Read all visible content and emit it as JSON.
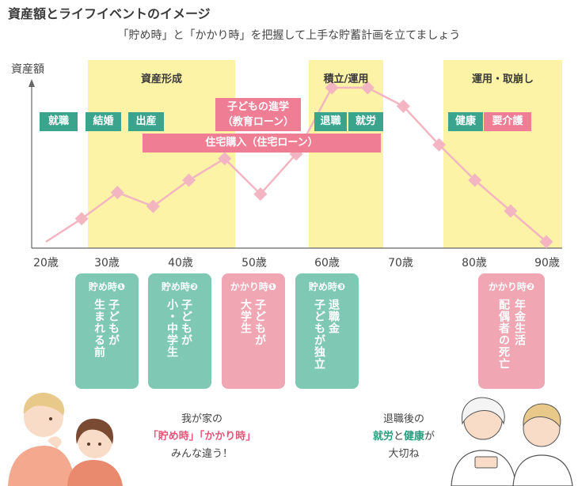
{
  "title": "資産額とライフイベントのイメージ",
  "subtitle": "「貯め時」と「かかり時」を把握して上手な貯蓄計画を立てましょう",
  "y_axis_label": "資産額",
  "stages": [
    {
      "label": "資産形成"
    },
    {
      "label": "積立/運用"
    },
    {
      "label": "運用・取崩し"
    }
  ],
  "ages": [
    "20歳",
    "30歳",
    "40歳",
    "50歳",
    "60歳",
    "70歳",
    "80歳",
    "90歳"
  ],
  "events_green": [
    "就職",
    "結婚",
    "出産",
    "退職",
    "就労",
    "健康"
  ],
  "events_pink": [
    "子どもの進学",
    "（教育ローン）",
    "住宅購入（住宅ローン）",
    "要介護"
  ],
  "asset_curve": {
    "x": [
      20,
      25,
      30,
      35,
      40,
      45,
      50,
      55,
      60,
      65,
      70,
      75,
      80,
      85,
      90
    ],
    "relative_level": [
      0.0,
      0.15,
      0.32,
      0.23,
      0.4,
      0.54,
      0.31,
      0.57,
      1.0,
      1.0,
      0.88,
      0.63,
      0.4,
      0.2,
      0.0
    ]
  },
  "cards": [
    {
      "head": "貯め時❶",
      "lines": [
        "子どもが",
        "生まれる前"
      ],
      "color": "green"
    },
    {
      "head": "貯め時❷",
      "lines": [
        "子どもが",
        "小・中学生"
      ],
      "color": "green"
    },
    {
      "head": "かかり時❶",
      "lines": [
        "子どもが",
        "大学生"
      ],
      "color": "pink"
    },
    {
      "head": "貯め時❸",
      "lines": [
        "退職金",
        "子どもが独立"
      ],
      "color": "green"
    },
    {
      "head": "かかり時❷",
      "lines": [
        "年金生活",
        "配偶者の死亡"
      ],
      "color": "pink"
    }
  ],
  "comment_left": {
    "line1": "我が家の",
    "em1": "「貯め時」",
    "em2": "「かかり時」",
    "line3": "みんな違う！"
  },
  "comment_right": {
    "line1": "退職後の",
    "em1": "就労",
    "mid": "と",
    "em2": "健康",
    "tail": "が",
    "line3": "大切ね"
  },
  "colors": {
    "band": "#fdf3a6",
    "curve": "#f3b5c2",
    "green": "#3aa58c",
    "pink": "#ef7e95",
    "card_green": "#7ec8b4",
    "card_pink": "#f1a6b3"
  }
}
